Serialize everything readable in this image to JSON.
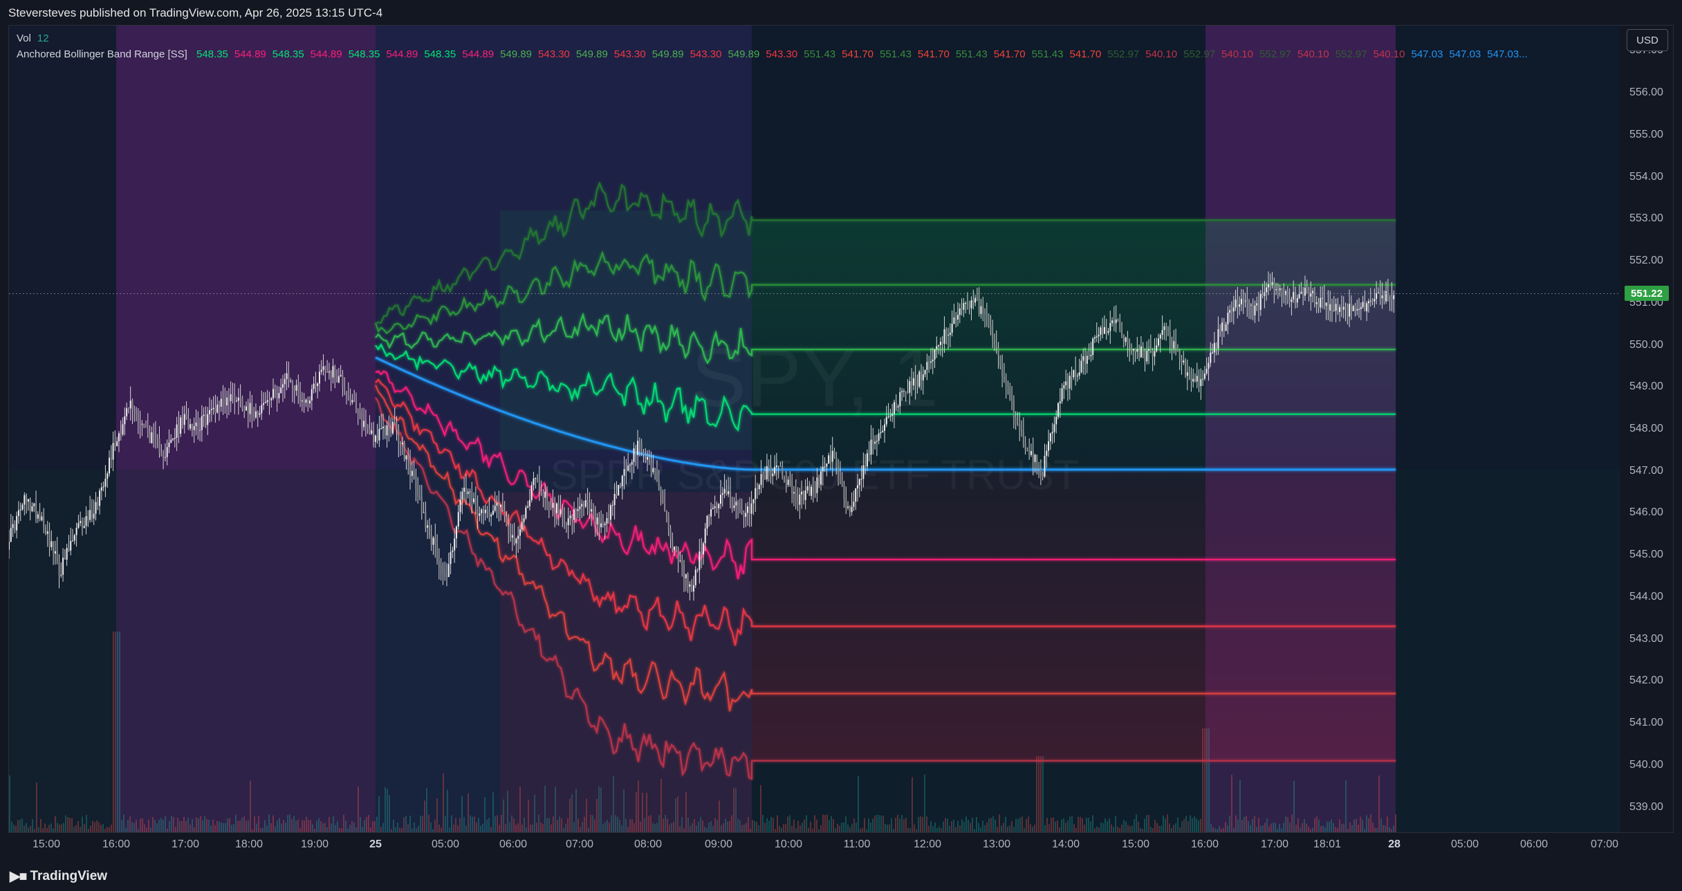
{
  "header": {
    "publisher": "Steversteves published on TradingView.com, Apr 26, 2025 13:15 UTC-4"
  },
  "legend": {
    "vol": {
      "label": "Vol",
      "value": "12"
    },
    "indicator": {
      "name": "Anchored Bollinger Band Range [SS]",
      "values": [
        {
          "v": "548.35",
          "c": "#00e676"
        },
        {
          "v": "544.89",
          "c": "#ff1f7a"
        },
        {
          "v": "548.35",
          "c": "#00e676"
        },
        {
          "v": "544.89",
          "c": "#ff1f7a"
        },
        {
          "v": "548.35",
          "c": "#00e676"
        },
        {
          "v": "544.89",
          "c": "#ff1f7a"
        },
        {
          "v": "548.35",
          "c": "#00e676"
        },
        {
          "v": "544.89",
          "c": "#ff1f7a"
        },
        {
          "v": "549.89",
          "c": "#4caf50"
        },
        {
          "v": "543.30",
          "c": "#f23645"
        },
        {
          "v": "549.89",
          "c": "#4caf50"
        },
        {
          "v": "543.30",
          "c": "#f23645"
        },
        {
          "v": "549.89",
          "c": "#4caf50"
        },
        {
          "v": "543.30",
          "c": "#f23645"
        },
        {
          "v": "549.89",
          "c": "#4caf50"
        },
        {
          "v": "543.30",
          "c": "#f23645"
        },
        {
          "v": "551.43",
          "c": "#388e3c"
        },
        {
          "v": "541.70",
          "c": "#f44336"
        },
        {
          "v": "551.43",
          "c": "#388e3c"
        },
        {
          "v": "541.70",
          "c": "#f44336"
        },
        {
          "v": "551.43",
          "c": "#388e3c"
        },
        {
          "v": "541.70",
          "c": "#f44336"
        },
        {
          "v": "551.43",
          "c": "#388e3c"
        },
        {
          "v": "541.70",
          "c": "#f44336"
        },
        {
          "v": "552.97",
          "c": "#2e5e30"
        },
        {
          "v": "540.10",
          "c": "#c2344a"
        },
        {
          "v": "552.97",
          "c": "#2e5e30"
        },
        {
          "v": "540.10",
          "c": "#c2344a"
        },
        {
          "v": "552.97",
          "c": "#2e5e30"
        },
        {
          "v": "540.10",
          "c": "#c2344a"
        },
        {
          "v": "552.97",
          "c": "#2e5e30"
        },
        {
          "v": "540.10",
          "c": "#c2344a"
        },
        {
          "v": "547.03",
          "c": "#2196f3"
        },
        {
          "v": "547.03",
          "c": "#2196f3"
        },
        {
          "v": "547.03...",
          "c": "#2196f3"
        }
      ]
    }
  },
  "currency_button": "USD",
  "last_price": "551.22",
  "watermark": {
    "symbol": "SPY, 1",
    "name": "SPDR S&P 500 ETF TRUST"
  },
  "footer": {
    "brand": "TradingView"
  },
  "colors": {
    "background": "#131722",
    "upper_bands": "#00e676",
    "lower_bands": "#f23645",
    "mean": "#2196f3",
    "candles": "#e0e0e0",
    "session_shade": "#6a2a82"
  },
  "chart_data": {
    "type": "line",
    "series_type": "candlestick (1-minute)",
    "y_axis_labels": [
      "557.00",
      "556.00",
      "555.00",
      "554.00",
      "553.00",
      "552.00",
      "551.00",
      "550.00",
      "549.00",
      "548.00",
      "547.00",
      "546.00",
      "545.00",
      "544.00",
      "543.00",
      "542.00",
      "541.00",
      "540.00",
      "539.00"
    ],
    "ylim": [
      538.4,
      557.6
    ],
    "x_axis_labels": [
      "15:00",
      "16:00",
      "17:00",
      "18:00",
      "19:00",
      "25",
      "05:00",
      "06:00",
      "07:00",
      "08:00",
      "09:00",
      "10:00",
      "11:00",
      "12:00",
      "13:00",
      "14:00",
      "15:00",
      "16:00",
      "17:00",
      "18:01",
      "28",
      "05:00",
      "06:00",
      "07:00"
    ],
    "band_levels": {
      "upper": [
        548.35,
        549.89,
        551.43,
        552.97
      ],
      "mean": 547.03,
      "lower": [
        544.89,
        543.3,
        541.7,
        540.1
      ]
    },
    "price_path": [
      545.3,
      546.3,
      545.9,
      544.6,
      545.6,
      546.1,
      547.5,
      548.6,
      547.9,
      547.4,
      548.2,
      548.1,
      548.6,
      548.8,
      548.4,
      548.7,
      549.2,
      548.6,
      549.5,
      549.2,
      548.3,
      547.8,
      548.1,
      547.0,
      545.6,
      544.4,
      546.6,
      545.9,
      546.3,
      545.2,
      546.8,
      546.2,
      545.8,
      546.2,
      545.5,
      546.8,
      547.6,
      546.9,
      545.1,
      544.1,
      546.0,
      546.5,
      545.8,
      546.9,
      547.1,
      546.3,
      546.6,
      547.4,
      546.0,
      547.4,
      548.2,
      548.8,
      549.2,
      550.0,
      550.6,
      551.1,
      550.5,
      548.9,
      547.5,
      547.0,
      548.8,
      549.4,
      550.1,
      550.6,
      550.0,
      549.7,
      550.4,
      549.5,
      549.0,
      550.2,
      551.0,
      550.8,
      551.4,
      551.1,
      551.2,
      551.0,
      550.8,
      550.9,
      551.1,
      551.22
    ],
    "legend_entries": [
      "Vol",
      "Anchored Bollinger Band Range [SS]"
    ],
    "grid": false
  }
}
